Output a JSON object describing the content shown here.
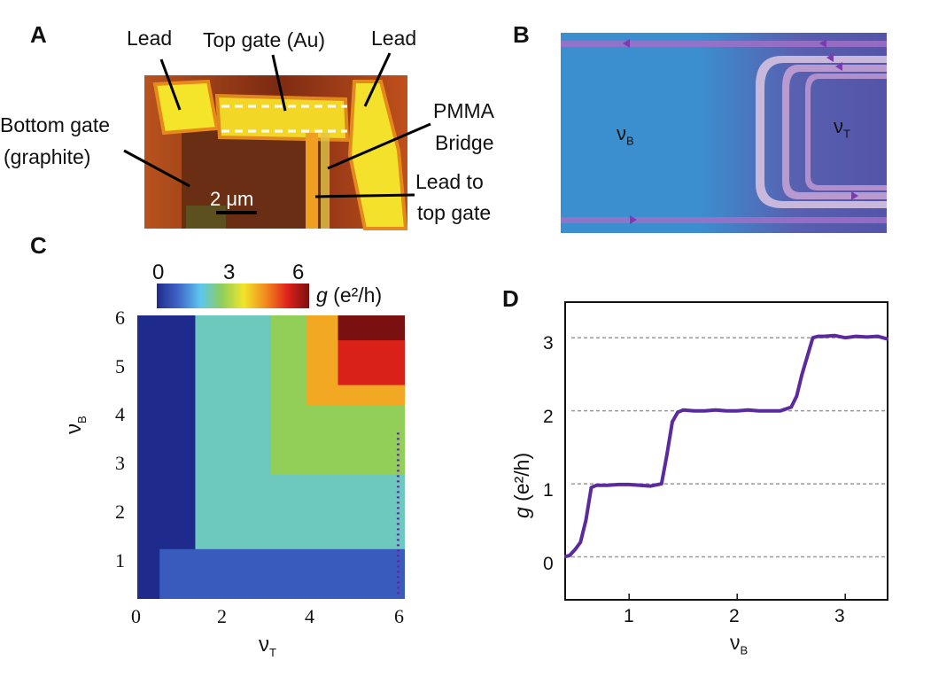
{
  "panels": {
    "a": {
      "letter": "A",
      "labels": {
        "lead_left": "Lead",
        "top_gate": "Top gate (Au)",
        "lead_right": "Lead",
        "pmma_line1": "PMMA",
        "pmma_line2": "Bridge",
        "bottom_gate_line1": "Bottom gate",
        "bottom_gate_line2": "(graphite)",
        "lead_top_line1": "Lead to",
        "lead_top_line2": "top gate",
        "scale_bar": "2 μm"
      }
    },
    "b": {
      "letter": "B",
      "nu_b_main": "ν",
      "nu_b_sub": "B",
      "nu_t_main": "ν",
      "nu_t_sub": "T"
    },
    "c": {
      "letter": "C",
      "colorbar_ticks": [
        "0",
        "3",
        "6"
      ],
      "colorbar_label_g": "g",
      "colorbar_label_units": " (e²/h)",
      "y_ticks": [
        "6",
        "5",
        "4",
        "3",
        "2",
        "1"
      ],
      "x_ticks": [
        "0",
        "2",
        "4",
        "6"
      ],
      "xlabel_main": "ν",
      "xlabel_sub": "T",
      "ylabel_main": "ν",
      "ylabel_sub": "B"
    },
    "d": {
      "letter": "D",
      "y_ticks": [
        "3",
        "2",
        "1",
        "0"
      ],
      "x_ticks": [
        "1",
        "2",
        "3"
      ],
      "ylabel_g": "g",
      "ylabel_units": " (e²/h)",
      "xlabel_main": "ν",
      "xlabel_sub": "B"
    }
  },
  "colors": {
    "trace": "#5b2a9e",
    "colormap": [
      "#1f2b8c",
      "#3f66c8",
      "#5cc6ee",
      "#8fce5a",
      "#f2e52a",
      "#f28a1e",
      "#e0221b",
      "#7a1010"
    ]
  },
  "chart_data": [
    {
      "panel": "C",
      "type": "heatmap",
      "xlabel": "νT",
      "ylabel": "νB",
      "xlim": [
        0,
        6
      ],
      "ylim": [
        0.3,
        6
      ],
      "colorbar_range": [
        0,
        6
      ],
      "colorbar_label": "g (e²/h)",
      "regions": [
        {
          "x": [
            0,
            6
          ],
          "y": [
            0.3,
            6
          ],
          "g": 0
        },
        {
          "x": [
            0.5,
            6
          ],
          "y": [
            0.3,
            1.3
          ],
          "g": 0.7
        },
        {
          "x": [
            1.3,
            6
          ],
          "y": [
            1.3,
            6
          ],
          "g": 2
        },
        {
          "x": [
            3.0,
            6
          ],
          "y": [
            2.8,
            6
          ],
          "g": 2.6
        },
        {
          "x": [
            3.8,
            6
          ],
          "y": [
            4.2,
            6
          ],
          "g": 4.0
        },
        {
          "x": [
            4.5,
            6
          ],
          "y": [
            4.6,
            6
          ],
          "g": 5.2
        },
        {
          "x": [
            4.5,
            6
          ],
          "y": [
            5.5,
            6
          ],
          "g": 6.0
        }
      ],
      "linecut": {
        "x": 5.85,
        "y": [
          0.4,
          3.7
        ]
      }
    },
    {
      "panel": "D",
      "type": "line",
      "xlabel": "νB",
      "ylabel": "g (e²/h)",
      "xlim": [
        0.4,
        3.4
      ],
      "ylim": [
        -0.6,
        3.5
      ],
      "x": [
        0.4,
        0.45,
        0.5,
        0.55,
        0.6,
        0.65,
        0.7,
        0.8,
        0.9,
        1.0,
        1.1,
        1.2,
        1.3,
        1.35,
        1.4,
        1.45,
        1.5,
        1.6,
        1.7,
        1.8,
        1.9,
        2.0,
        2.1,
        2.2,
        2.3,
        2.4,
        2.5,
        2.55,
        2.6,
        2.65,
        2.7,
        2.75,
        2.8,
        2.9,
        3.0,
        3.1,
        3.2,
        3.3,
        3.4
      ],
      "y": [
        0.0,
        0.02,
        0.1,
        0.2,
        0.5,
        0.95,
        0.98,
        0.98,
        0.99,
        0.99,
        0.98,
        0.97,
        1.0,
        1.4,
        1.85,
        1.98,
        2.01,
        2.0,
        2.0,
        2.01,
        2.0,
        2.0,
        2.01,
        2.0,
        2.0,
        2.0,
        2.05,
        2.2,
        2.5,
        2.75,
        3.0,
        3.02,
        3.02,
        3.03,
        3.0,
        3.02,
        3.01,
        3.02,
        2.98
      ],
      "gridlines_y": [
        0,
        1,
        2,
        3
      ]
    }
  ]
}
